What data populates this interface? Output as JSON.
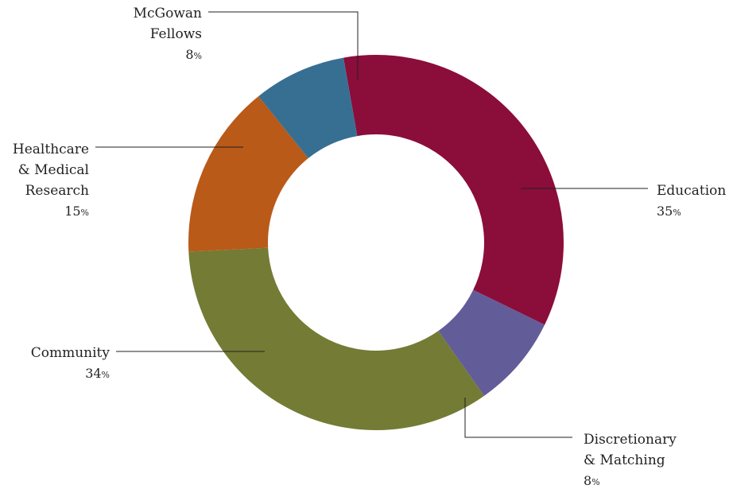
{
  "chart_data": {
    "type": "pie",
    "donut": true,
    "categories": [
      "Education",
      "Discretionary & Matching",
      "Community",
      "Healthcare & Medical Research",
      "McGowan Fellows"
    ],
    "values": [
      35,
      8,
      34,
      15,
      8
    ],
    "unit": "%",
    "colors": [
      "#8b0d3a",
      "#625c99",
      "#737b35",
      "#b95a19",
      "#376f92"
    ],
    "label_lines": [
      [
        "Education"
      ],
      [
        "Discretionary",
        "& Matching"
      ],
      [
        "Community"
      ],
      [
        "Healthcare",
        "& Medical",
        "Research"
      ],
      [
        "McGowan",
        "Fellows"
      ]
    ],
    "legend": "none",
    "title": ""
  }
}
